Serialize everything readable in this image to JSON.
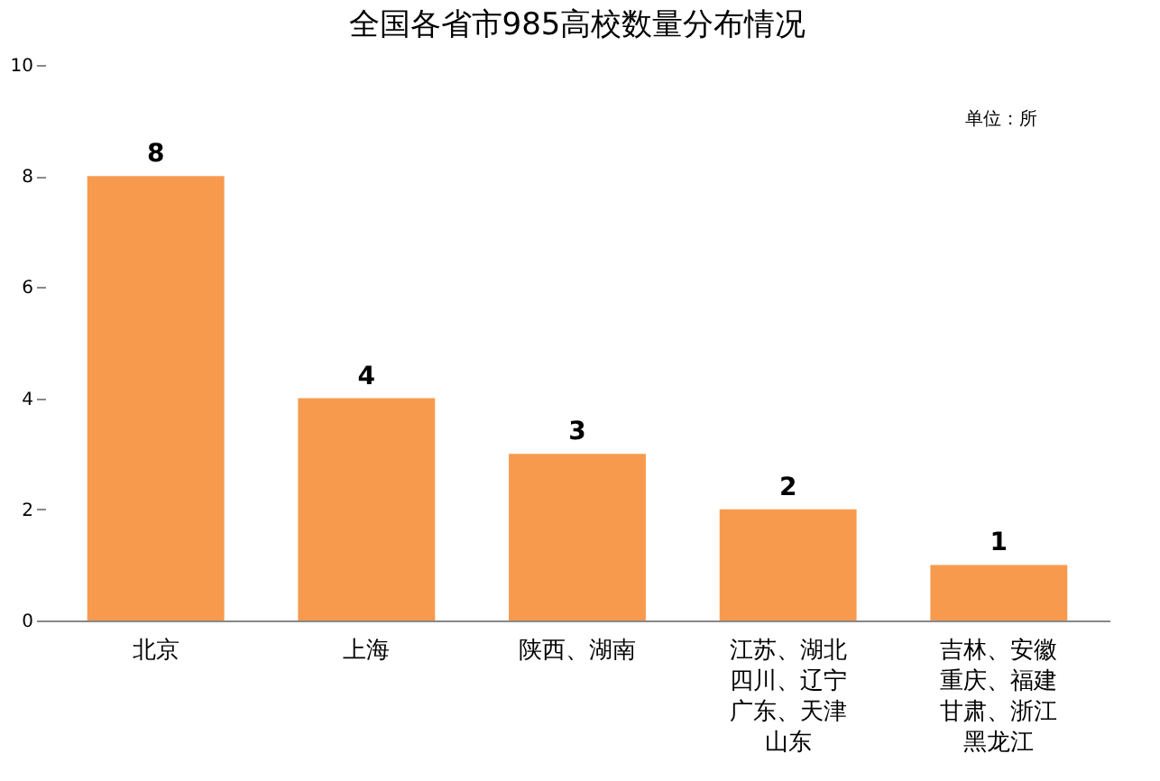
{
  "chart_data": {
    "type": "bar",
    "title": "全国各省市985高校数量分布情况",
    "categories": [
      "北京",
      "上海",
      "陕西、湖南",
      "江苏、湖北四川、辽宁广东、天津山东",
      "吉林、安徽重庆、福建甘肃、浙江黑龙江"
    ],
    "values": [
      8,
      4,
      3,
      2,
      1
    ],
    "color": "#f79a4e",
    "ylim": [
      0,
      10
    ],
    "yticks": [
      0,
      2,
      4,
      6,
      8,
      10
    ],
    "grid": false,
    "data_labels": true,
    "annotations": [
      "单位：所"
    ]
  }
}
